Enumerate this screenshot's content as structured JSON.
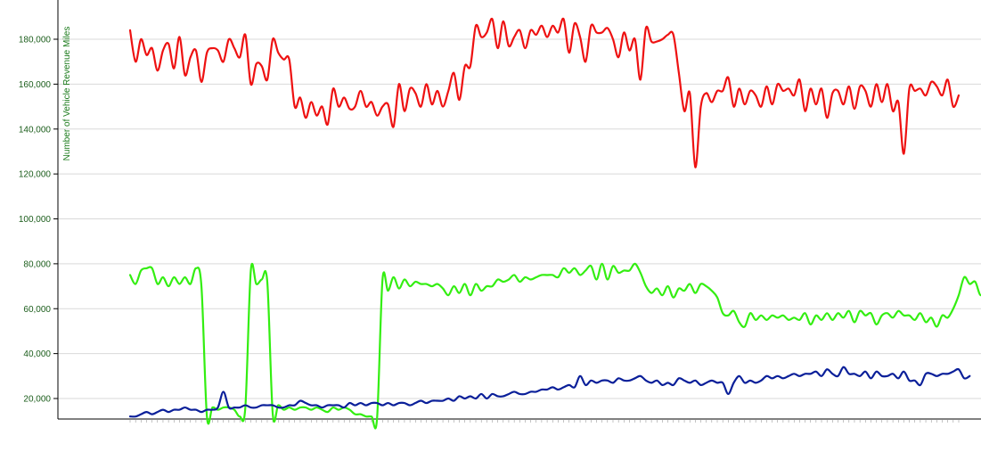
{
  "chart_data": {
    "type": "line",
    "ylabel": "Number of Vehicle Revenue Miles",
    "ylim": [
      12000,
      190000
    ],
    "yticks": [
      20000,
      40000,
      60000,
      80000,
      100000,
      120000,
      140000,
      160000,
      180000
    ],
    "ytick_labels": [
      "20,000",
      "40,000",
      "60,000",
      "80,000",
      "100,000",
      "120,000",
      "140,000",
      "160,000",
      "180,000"
    ],
    "grid": true,
    "legend": "none",
    "series": [
      {
        "color": "#ee1111",
        "values": [
          184000,
          170000,
          180000,
          173000,
          176000,
          166000,
          175000,
          178000,
          167000,
          181000,
          164000,
          172000,
          175000,
          161000,
          174000,
          176000,
          175000,
          170000,
          180000,
          176000,
          172000,
          182000,
          160000,
          169000,
          168000,
          162000,
          180000,
          174000,
          171000,
          171000,
          150000,
          154000,
          145000,
          152000,
          146000,
          150000,
          142000,
          158000,
          150000,
          154000,
          149000,
          150000,
          157000,
          150000,
          152000,
          146000,
          150000,
          151000,
          141000,
          160000,
          148000,
          158000,
          156000,
          150000,
          160000,
          151000,
          157000,
          150000,
          157000,
          165000,
          153000,
          168000,
          168000,
          186000,
          181000,
          183000,
          189000,
          176000,
          188000,
          177000,
          181000,
          184000,
          176000,
          184000,
          182000,
          186000,
          181000,
          186000,
          183000,
          189000,
          174000,
          187000,
          181000,
          170000,
          186000,
          183000,
          183000,
          185000,
          180000,
          172000,
          183000,
          175000,
          180000,
          162000,
          185000,
          179000,
          179000,
          180000,
          182000,
          182000,
          165000,
          148000,
          156000,
          123000,
          150000,
          156000,
          152000,
          157000,
          157000,
          163000,
          150000,
          158000,
          151000,
          157000,
          155000,
          150000,
          159000,
          151000,
          160000,
          157000,
          158000,
          155000,
          162000,
          148000,
          158000,
          151000,
          158000,
          145000,
          156000,
          157000,
          151000,
          159000,
          149000,
          159000,
          157000,
          150000,
          160000,
          152000,
          160000,
          148000,
          152000,
          129000,
          158000,
          157000,
          158000,
          155000,
          161000,
          159000,
          155000,
          162000,
          150000,
          155000
        ]
      },
      {
        "color": "#33ee11",
        "values": [
          75000,
          71000,
          77000,
          78000,
          78000,
          71000,
          74000,
          70000,
          74000,
          71000,
          74000,
          71000,
          78000,
          70000,
          12000,
          16000,
          15000,
          16000,
          16000,
          15000,
          12000,
          16000,
          77000,
          71000,
          73000,
          72000,
          13000,
          17000,
          15000,
          16000,
          15000,
          16000,
          16000,
          15000,
          16000,
          15000,
          14000,
          16000,
          15000,
          16000,
          15000,
          13000,
          13000,
          12000,
          12000,
          11000,
          73000,
          68000,
          74000,
          69000,
          73000,
          70000,
          72000,
          71000,
          71000,
          70000,
          71000,
          69000,
          66000,
          70000,
          67000,
          71000,
          66000,
          71000,
          68000,
          70000,
          70000,
          73000,
          72000,
          73000,
          75000,
          72000,
          74000,
          73000,
          74000,
          75000,
          75000,
          75000,
          74000,
          78000,
          76000,
          78000,
          75000,
          77000,
          79000,
          73000,
          80000,
          73000,
          79000,
          76000,
          77000,
          77000,
          80000,
          76000,
          70000,
          67000,
          69000,
          66000,
          70000,
          65000,
          69000,
          68000,
          71000,
          67000,
          71000,
          70000,
          68000,
          65000,
          58000,
          57000,
          59000,
          54000,
          52000,
          58000,
          55000,
          57000,
          55000,
          57000,
          56000,
          57000,
          55000,
          56000,
          55000,
          58000,
          53000,
          57000,
          55000,
          58000,
          55000,
          58000,
          56000,
          59000,
          54000,
          59000,
          57000,
          58000,
          53000,
          57000,
          58000,
          56000,
          59000,
          57000,
          57000,
          55000,
          58000,
          54000,
          56000,
          52000,
          57000,
          56000,
          60000,
          66000,
          74000,
          71000,
          72000,
          66000,
          71000
        ]
      },
      {
        "color": "#0a1f99",
        "values": [
          12000,
          12000,
          13000,
          14000,
          13000,
          14000,
          15000,
          14000,
          15000,
          15000,
          16000,
          15000,
          15000,
          14000,
          15000,
          15000,
          16000,
          23000,
          16000,
          16000,
          16000,
          17000,
          16000,
          16000,
          17000,
          17000,
          17000,
          16000,
          16000,
          17000,
          17000,
          19000,
          18000,
          17000,
          17000,
          16000,
          17000,
          17000,
          17000,
          16000,
          18000,
          17000,
          18000,
          17000,
          18000,
          18000,
          17000,
          18000,
          17000,
          18000,
          18000,
          17000,
          18000,
          19000,
          18000,
          19000,
          19000,
          19000,
          20000,
          19000,
          21000,
          20000,
          21000,
          20000,
          22000,
          20000,
          22000,
          21000,
          21000,
          22000,
          23000,
          22000,
          22000,
          23000,
          23000,
          24000,
          24000,
          25000,
          24000,
          25000,
          26000,
          25000,
          30000,
          26000,
          28000,
          27000,
          28000,
          28000,
          27000,
          29000,
          28000,
          28000,
          29000,
          30000,
          28000,
          27000,
          28000,
          26000,
          27000,
          26000,
          29000,
          28000,
          27000,
          28000,
          26000,
          27000,
          28000,
          27000,
          27000,
          22000,
          27000,
          30000,
          27000,
          28000,
          27000,
          28000,
          30000,
          29000,
          30000,
          29000,
          30000,
          31000,
          30000,
          31000,
          31000,
          32000,
          30000,
          33000,
          31000,
          30000,
          34000,
          31000,
          31000,
          30000,
          32000,
          29000,
          32000,
          30000,
          30000,
          31000,
          29000,
          32000,
          28000,
          28000,
          26000,
          31000,
          31000,
          30000,
          31000,
          31000,
          32000,
          33000,
          29000,
          30000
        ]
      }
    ]
  }
}
